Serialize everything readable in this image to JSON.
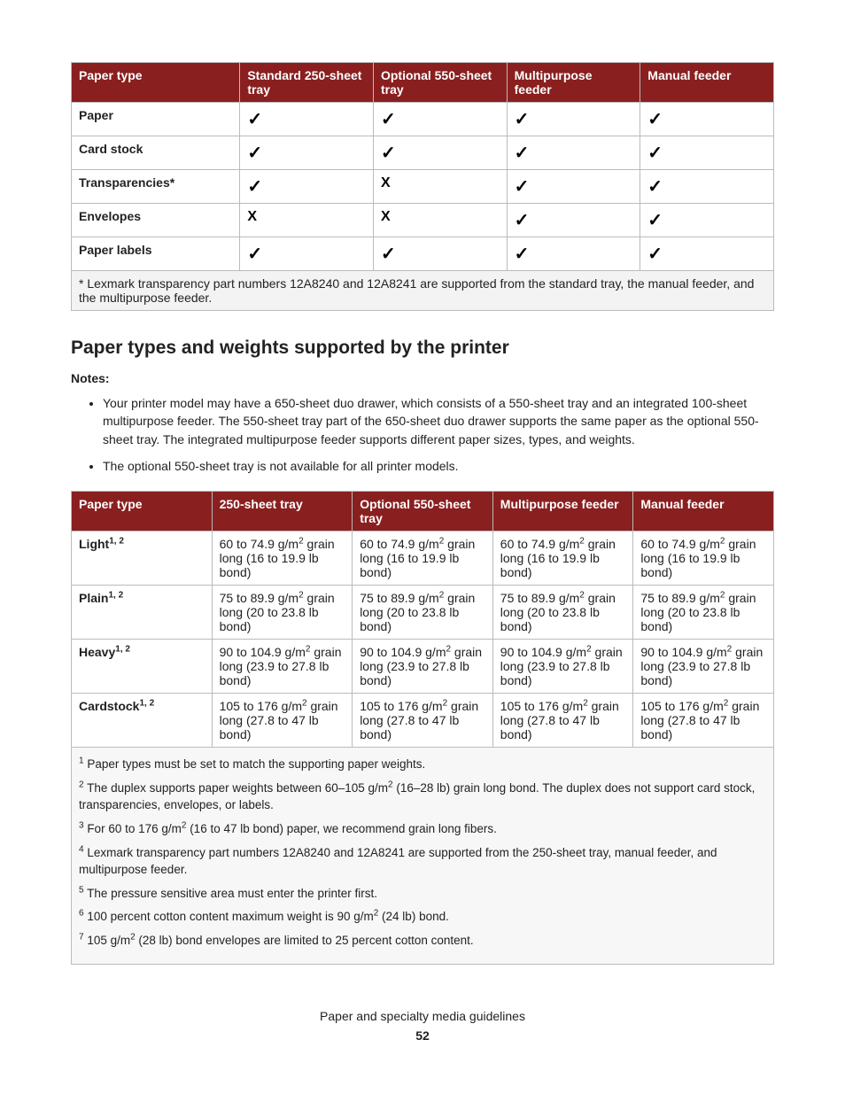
{
  "colors": {
    "header_bg": "#8a1f1f",
    "header_text": "#ffffff",
    "border": "#bbbbbb",
    "footnote_bg": "#f3f3f3"
  },
  "table1": {
    "headers": [
      "Paper type",
      "Standard 250-sheet tray",
      "Optional 550-sheet tray",
      "Multipurpose feeder",
      "Manual feeder"
    ],
    "rows": [
      {
        "type": "Paper",
        "cells": [
          "check",
          "check",
          "check",
          "check"
        ]
      },
      {
        "type": "Card stock",
        "cells": [
          "check",
          "check",
          "check",
          "check"
        ]
      },
      {
        "type": "Transparencies*",
        "cells": [
          "check",
          "cross",
          "check",
          "check"
        ]
      },
      {
        "type": "Envelopes",
        "cells": [
          "cross",
          "cross",
          "check",
          "check"
        ]
      },
      {
        "type": "Paper labels",
        "cells": [
          "check",
          "check",
          "check",
          "check"
        ]
      }
    ],
    "footnote": "* Lexmark transparency part numbers 12A8240 and 12A8241 are supported from the standard tray, the manual feeder, and the multipurpose feeder."
  },
  "section_heading": "Paper types and weights supported by the printer",
  "notes_label": "Notes:",
  "notes": [
    "Your printer model may have a 650-sheet duo drawer, which consists of a 550-sheet tray and an integrated 100-sheet multipurpose feeder. The 550-sheet tray part of the 650-sheet duo drawer supports the same paper as the optional 550-sheet tray. The integrated multipurpose feeder supports different paper sizes, types, and weights.",
    "The optional 550-sheet tray is not available for all printer models."
  ],
  "table2": {
    "headers": [
      "Paper type",
      "250-sheet tray",
      "Optional 550-sheet tray",
      "Multipurpose feeder",
      "Manual feeder"
    ],
    "rows": [
      {
        "type_html": "Light<sup>1, 2</sup>",
        "cell_html": "60 to 74.9 g/m<sup>2</sup> grain long (16 to 19.9 lb bond)"
      },
      {
        "type_html": "Plain<sup>1, 2</sup>",
        "cell_html": "75 to 89.9 g/m<sup>2</sup> grain long (20 to 23.8 lb bond)"
      },
      {
        "type_html": "Heavy<sup>1, 2</sup>",
        "cell_html": "90 to 104.9 g/m<sup>2</sup> grain long (23.9 to 27.8 lb bond)"
      },
      {
        "type_html": "Cardstock<sup>1, 2</sup>",
        "cell_html": "105 to 176 g/m<sup>2</sup> grain long (27.8 to 47 lb bond)"
      }
    ]
  },
  "footnotes2": [
    "<sup>1</sup> Paper types must be set to match the supporting paper weights.",
    "<sup>2</sup> The duplex supports paper weights between 60–105 g/m<sup>2</sup> (16–28 lb) grain long bond. The duplex does not support card stock, transparencies, envelopes, or labels.",
    "<sup>3</sup> For 60 to 176 g/m<sup>2</sup> (16 to 47 lb bond) paper, we recommend grain long fibers.",
    "<sup>4</sup> Lexmark transparency part numbers 12A8240 and 12A8241 are supported from the 250-sheet tray, manual feeder, and multipurpose feeder.",
    "<sup>5</sup> The pressure sensitive area must enter the printer first.",
    "<sup>6</sup> 100 percent cotton content maximum weight is 90 g/m<sup>2</sup> (24 lb) bond.",
    "<sup>7</sup> 105  g/m<sup>2</sup> (28 lb) bond envelopes are limited to 25 percent cotton content."
  ],
  "footer_text": "Paper and specialty media guidelines",
  "page_number": "52",
  "icons": {
    "check": "✓",
    "cross": "X"
  }
}
